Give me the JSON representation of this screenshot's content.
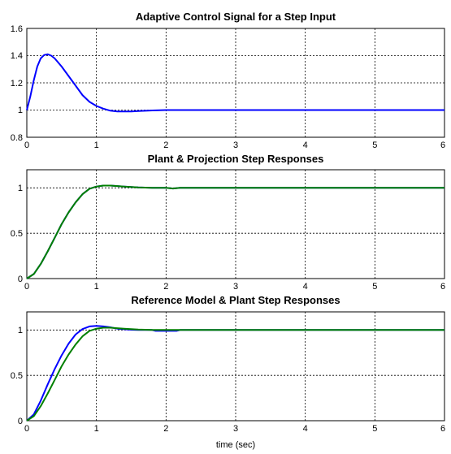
{
  "chart_data": [
    {
      "type": "line",
      "title": "Adaptive Control Signal for a Step Input",
      "xlabel": "",
      "ylabel": "",
      "xlim": [
        0,
        6
      ],
      "ylim": [
        0.8,
        1.6
      ],
      "xticks": [
        "0",
        "1",
        "2",
        "3",
        "4",
        "5",
        "6"
      ],
      "yticks": [
        "0.8",
        "1",
        "1.2",
        "1.4",
        "1.6"
      ],
      "ytick_values": [
        0.8,
        1.0,
        1.2,
        1.4,
        1.6
      ],
      "grid": true,
      "series": [
        {
          "color": "#0000ff",
          "x": [
            0,
            0.05,
            0.1,
            0.15,
            0.2,
            0.25,
            0.3,
            0.35,
            0.4,
            0.5,
            0.6,
            0.7,
            0.8,
            0.9,
            1.0,
            1.1,
            1.2,
            1.3,
            1.4,
            1.5,
            1.6,
            1.8,
            2.0,
            3.0,
            4.0,
            5.0,
            6.0
          ],
          "y": [
            1.0,
            1.1,
            1.22,
            1.32,
            1.38,
            1.405,
            1.41,
            1.4,
            1.38,
            1.32,
            1.25,
            1.18,
            1.11,
            1.06,
            1.03,
            1.01,
            0.995,
            0.99,
            0.99,
            0.99,
            0.993,
            0.997,
            1.0,
            1.0,
            1.0,
            1.0,
            1.0
          ]
        }
      ]
    },
    {
      "type": "line",
      "title": "Plant & Projection Step Responses",
      "xlabel": "",
      "ylabel": "",
      "xlim": [
        0,
        6
      ],
      "ylim": [
        0,
        1.2
      ],
      "xticks": [
        "0",
        "1",
        "2",
        "3",
        "4",
        "5",
        "6"
      ],
      "yticks": [
        "0",
        "0.5",
        "1"
      ],
      "ytick_values": [
        0,
        0.5,
        1
      ],
      "grid": true,
      "series": [
        {
          "color": "#0000ff",
          "x": [
            0,
            0.1,
            0.2,
            0.3,
            0.4,
            0.5,
            0.6,
            0.7,
            0.8,
            0.9,
            1.0,
            1.1,
            1.2,
            1.3,
            1.4,
            1.5,
            1.6,
            1.8,
            2.0,
            2.1,
            2.2,
            3.0,
            4.0,
            5.0,
            6.0
          ],
          "y": [
            0,
            0.05,
            0.16,
            0.3,
            0.45,
            0.6,
            0.73,
            0.84,
            0.93,
            0.99,
            1.015,
            1.025,
            1.025,
            1.02,
            1.015,
            1.01,
            1.005,
            1.0,
            1.0,
            0.993,
            1.0,
            1.0,
            1.0,
            1.0,
            1.0
          ]
        },
        {
          "color": "#008000",
          "x": [
            0,
            0.1,
            0.2,
            0.3,
            0.4,
            0.5,
            0.6,
            0.7,
            0.8,
            0.9,
            1.0,
            1.1,
            1.2,
            1.3,
            1.4,
            1.5,
            1.6,
            1.8,
            2.0,
            2.1,
            2.2,
            3.0,
            4.0,
            5.0,
            6.0
          ],
          "y": [
            0,
            0.05,
            0.16,
            0.3,
            0.45,
            0.6,
            0.73,
            0.84,
            0.93,
            0.99,
            1.015,
            1.025,
            1.025,
            1.02,
            1.015,
            1.01,
            1.005,
            1.0,
            1.0,
            0.993,
            1.0,
            1.0,
            1.0,
            1.0,
            1.0
          ]
        }
      ]
    },
    {
      "type": "line",
      "title": "Reference Model & Plant Step Responses",
      "xlabel": "time (sec)",
      "ylabel": "",
      "xlim": [
        0,
        6
      ],
      "ylim": [
        0,
        1.2
      ],
      "xticks": [
        "0",
        "1",
        "2",
        "3",
        "4",
        "5",
        "6"
      ],
      "yticks": [
        "0",
        "0.5",
        "1"
      ],
      "ytick_values": [
        0,
        0.5,
        1
      ],
      "grid": true,
      "series": [
        {
          "color": "#0000ff",
          "x": [
            0,
            0.1,
            0.2,
            0.3,
            0.4,
            0.5,
            0.6,
            0.7,
            0.8,
            0.9,
            1.0,
            1.1,
            1.2,
            1.3,
            1.4,
            1.5,
            1.6,
            1.8,
            1.85,
            2.0,
            2.15,
            2.2,
            3.0,
            4.0,
            5.0,
            6.0
          ],
          "y": [
            0,
            0.07,
            0.22,
            0.4,
            0.57,
            0.72,
            0.85,
            0.95,
            1.01,
            1.04,
            1.045,
            1.04,
            1.03,
            1.015,
            1.008,
            1.003,
            1.0,
            1.0,
            0.99,
            0.99,
            0.99,
            1.0,
            1.0,
            1.0,
            1.0,
            1.0
          ]
        },
        {
          "color": "#008000",
          "x": [
            0,
            0.1,
            0.2,
            0.3,
            0.4,
            0.5,
            0.6,
            0.7,
            0.8,
            0.9,
            1.0,
            1.1,
            1.2,
            1.3,
            1.4,
            1.5,
            1.6,
            1.8,
            2.0,
            3.0,
            4.0,
            5.0,
            6.0
          ],
          "y": [
            0,
            0.05,
            0.16,
            0.3,
            0.45,
            0.6,
            0.73,
            0.84,
            0.93,
            0.99,
            1.015,
            1.025,
            1.025,
            1.02,
            1.015,
            1.01,
            1.005,
            1.0,
            1.0,
            1.0,
            1.0,
            1.0,
            1.0
          ]
        }
      ]
    }
  ]
}
